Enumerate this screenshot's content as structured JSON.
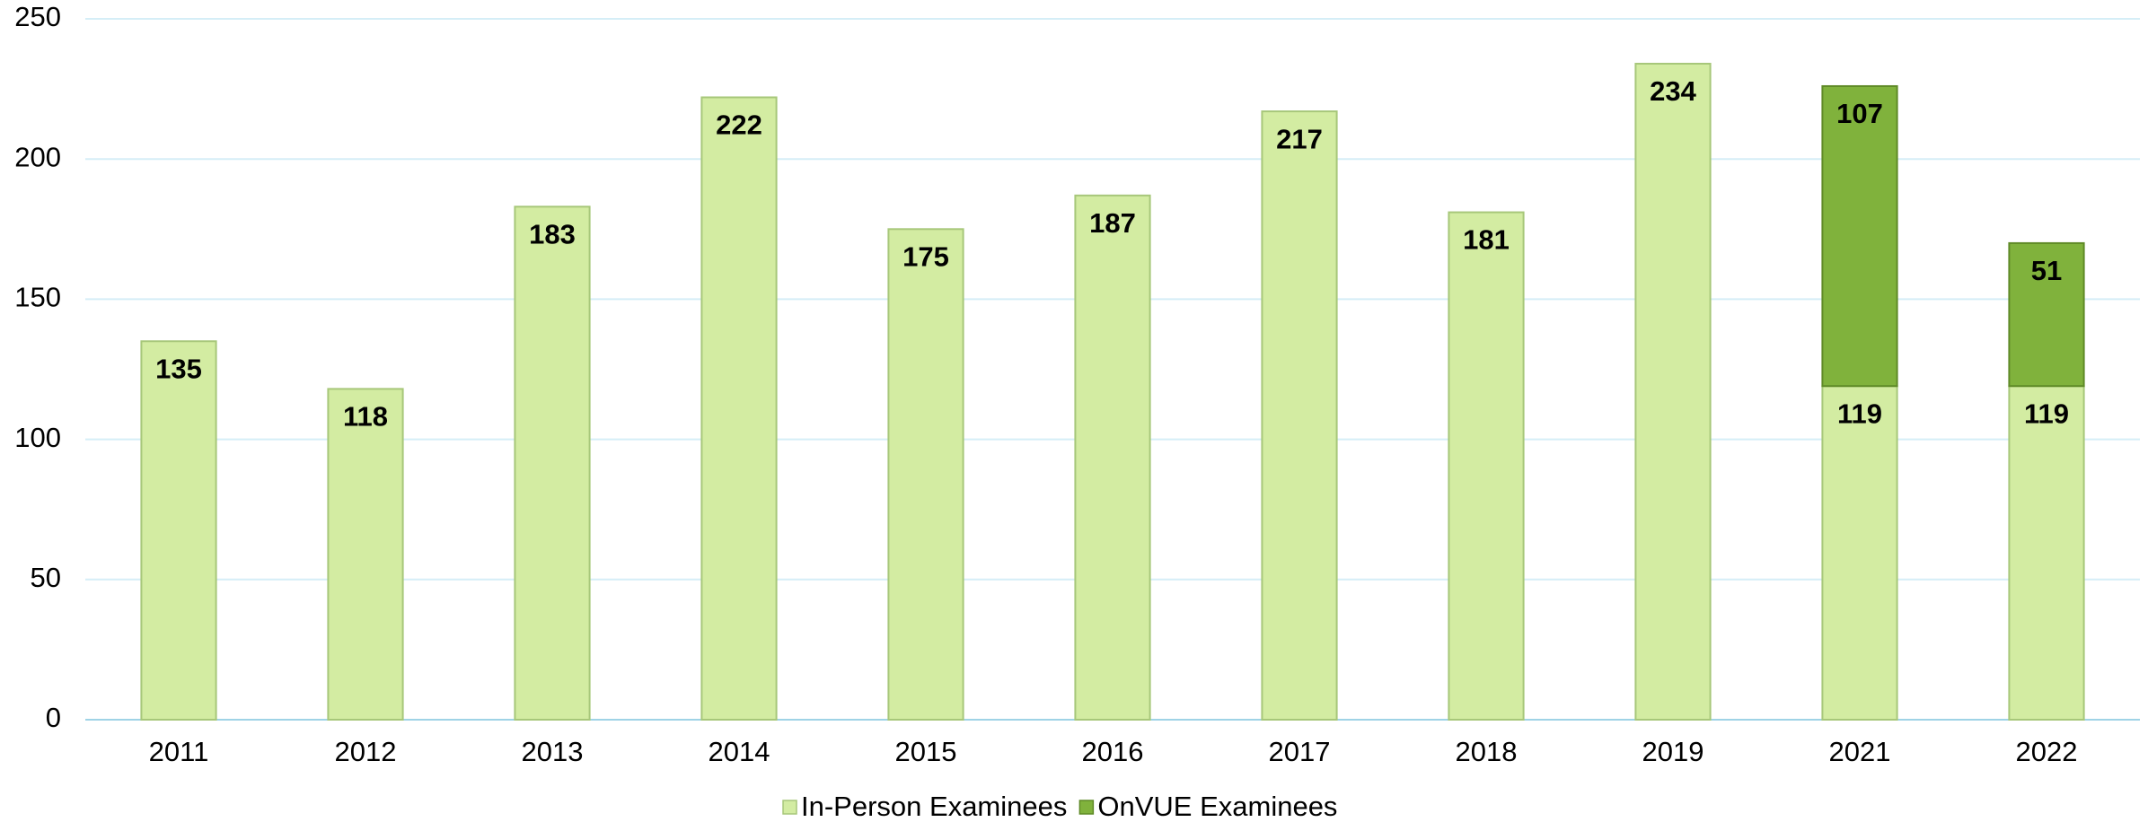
{
  "chart_data": {
    "type": "stacked_bar",
    "categories": [
      "2011",
      "2012",
      "2013",
      "2014",
      "2015",
      "2016",
      "2017",
      "2018",
      "2019",
      "2021",
      "2022"
    ],
    "series": [
      {
        "name": "In-Person Examinees",
        "color": "#d3eca2",
        "values": [
          135,
          118,
          183,
          222,
          175,
          187,
          217,
          181,
          234,
          119,
          119
        ]
      },
      {
        "name": "OnVUE Examinees",
        "color": "#80b23c",
        "values": [
          null,
          null,
          null,
          null,
          null,
          null,
          null,
          null,
          null,
          107,
          51
        ]
      }
    ],
    "ylim": [
      0,
      250
    ],
    "yticks": [
      0,
      50,
      100,
      150,
      200,
      250
    ],
    "grid": true,
    "legend": "bottom"
  }
}
